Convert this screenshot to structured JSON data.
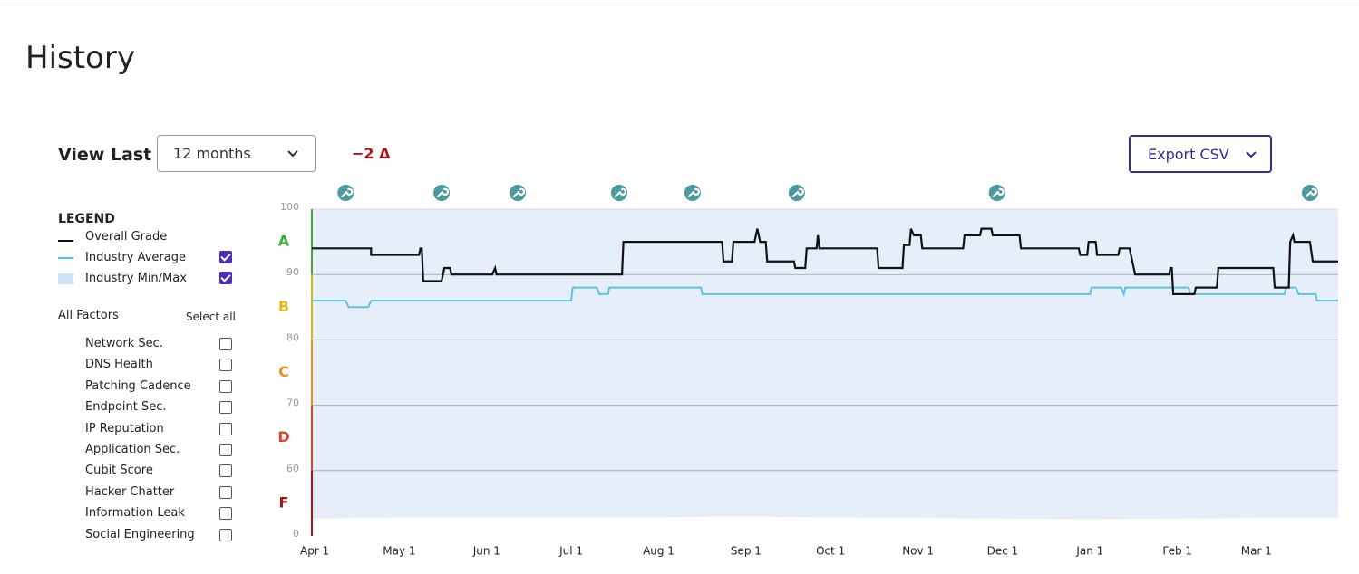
{
  "header": {
    "title": "History"
  },
  "controls": {
    "view_last_label": "View Last",
    "range": "12 months",
    "delta": "−2 Δ",
    "export": "Export CSV"
  },
  "legend": {
    "title": "LEGEND"
  },
  "factors": {
    "title": "All Factors",
    "select_all": "Select all",
    "items": [
      "Network Sec.",
      "DNS Health",
      "Patching Cadence",
      "Endpoint Sec.",
      "IP Reputation",
      "Application Sec.",
      "Cubit Score",
      "Hacker Chatter",
      "Information Leak",
      "Social Engineering"
    ]
  },
  "chart_data": {
    "type": "line",
    "xlim": [
      -1,
      363
    ],
    "xticks": [
      {
        "value": 0,
        "label": "Apr 1"
      },
      {
        "value": 30,
        "label": "May 1"
      },
      {
        "value": 61,
        "label": "Jun 1"
      },
      {
        "value": 91,
        "label": "Jul 1"
      },
      {
        "value": 122,
        "label": "Aug 1"
      },
      {
        "value": 153,
        "label": "Sep 1"
      },
      {
        "value": 183,
        "label": "Oct 1"
      },
      {
        "value": 214,
        "label": "Nov 1"
      },
      {
        "value": 244,
        "label": "Dec 1"
      },
      {
        "value": 275,
        "label": "Jan 1"
      },
      {
        "value": 306,
        "label": "Feb 1"
      },
      {
        "value": 334,
        "label": "Mar 1"
      }
    ],
    "ylim": [
      0,
      100
    ],
    "yticks": [
      0,
      60,
      70,
      80,
      90,
      100
    ],
    "grid": true,
    "grades": [
      {
        "label": "F",
        "color": "#a3151a"
      },
      {
        "label": "D",
        "color": "#d9452b"
      },
      {
        "label": "C",
        "color": "#ef8d22"
      },
      {
        "label": "B",
        "color": "#e2b51b"
      },
      {
        "label": "A",
        "color": "#3daa3a"
      }
    ],
    "events": [
      11,
      45,
      72,
      108,
      134,
      171,
      242,
      353
    ],
    "band": {
      "name": "Industry Min/Max",
      "color": "#e6eefa",
      "visible": true,
      "x": [
        -1,
        30,
        61,
        91,
        122,
        150,
        183,
        214,
        244,
        275,
        306,
        334,
        363
      ],
      "low": [
        16,
        17,
        17,
        17,
        17,
        18,
        17,
        16.5,
        16,
        15.5,
        16,
        16.5,
        16.5
      ],
      "high": [
        100,
        100,
        100,
        100,
        100,
        100,
        100,
        100,
        100,
        100,
        100,
        100,
        100
      ]
    },
    "series": [
      {
        "name": "Overall Grade",
        "color": "#111111",
        "x": [
          -1,
          20,
          20,
          37,
          37.5,
          38,
          38.5,
          45,
          46,
          48,
          48.5,
          63,
          64,
          64.5,
          109,
          109.5,
          144.5,
          145,
          148,
          148.5,
          156,
          157,
          158,
          160,
          160.5,
          170,
          170.5,
          174,
          174.5,
          178,
          178.5,
          179,
          199.5,
          200,
          208.5,
          209,
          211,
          211.5,
          212.5,
          215,
          215.5,
          230,
          230.5,
          236,
          236.5,
          240,
          240.5,
          250,
          250.5,
          271,
          271.5,
          274,
          274.5,
          277,
          277.5,
          285,
          285.5,
          289,
          291,
          303,
          303.5,
          304,
          304.5,
          312,
          312.5,
          320,
          320.5,
          340,
          340.5,
          345.5,
          346,
          347,
          347.5,
          353,
          354,
          363
        ],
        "values": [
          94,
          94,
          93,
          93,
          94,
          94,
          89,
          89,
          91,
          91,
          90,
          90,
          91,
          90,
          90,
          95,
          95,
          92,
          92,
          95,
          95,
          97,
          95,
          95,
          92,
          92,
          91,
          91,
          94,
          94,
          96,
          94,
          94,
          91,
          91,
          94.5,
          94.5,
          97,
          96,
          96,
          94,
          94,
          96,
          96,
          97,
          97,
          96,
          96,
          94,
          94,
          93,
          93,
          95,
          95,
          93,
          93,
          94,
          94,
          90,
          90,
          91,
          91,
          87,
          87,
          88,
          88,
          91,
          91,
          88,
          88,
          95,
          96,
          95,
          95,
          92,
          92
        ]
      },
      {
        "name": "Industry Average",
        "color": "#5bc3e0",
        "visible": true,
        "x": [
          -1,
          11,
          12,
          19,
          20,
          91,
          91.5,
          100,
          101,
          104,
          104.5,
          137,
          137.5,
          275,
          275.5,
          286,
          287,
          287.5,
          310,
          310.5,
          344,
          344.5,
          348,
          349,
          355,
          355.5,
          363
        ],
        "values": [
          86,
          86,
          85,
          85,
          86,
          86,
          88,
          88,
          87,
          87,
          88,
          88,
          87,
          87,
          88,
          88,
          87,
          88,
          88,
          87,
          87,
          88,
          88,
          87,
          87,
          86,
          86
        ]
      }
    ]
  }
}
